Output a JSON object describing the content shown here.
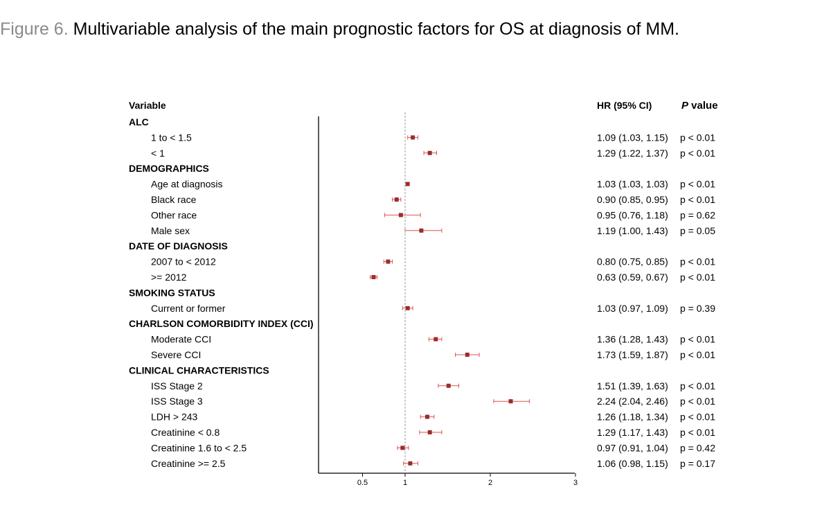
{
  "figure_label": "Figure 6.",
  "caption": "Multivariable analysis of the main prognostic factors for OS at diagnosis of MM.",
  "chart_data": {
    "type": "forest",
    "column_headers": {
      "variable": "Variable",
      "hr": "HR (95% CI)",
      "p_bold": "P",
      "p_rest": " value"
    },
    "xticks": [
      0.5,
      1,
      2,
      3
    ],
    "xtick_labels": [
      "0.5",
      "1",
      "2",
      "3"
    ],
    "xlim": [
      0.5,
      3
    ],
    "reference_line": 1,
    "rows": [
      {
        "type": "header",
        "label": "ALC"
      },
      {
        "type": "item",
        "label": "1 to < 1.5",
        "hr": 1.09,
        "lo": 1.03,
        "hi": 1.15,
        "hr_text": "1.09 (1.03, 1.15)",
        "p": "p < 0.01"
      },
      {
        "type": "item",
        "label": "< 1",
        "hr": 1.29,
        "lo": 1.22,
        "hi": 1.37,
        "hr_text": "1.29 (1.22, 1.37)",
        "p": "p < 0.01"
      },
      {
        "type": "header",
        "label": "DEMOGRAPHICS"
      },
      {
        "type": "item",
        "label": "Age at diagnosis",
        "hr": 1.03,
        "lo": 1.03,
        "hi": 1.03,
        "hr_text": "1.03 (1.03, 1.03)",
        "p": "p < 0.01"
      },
      {
        "type": "item",
        "label": "Black race",
        "hr": 0.9,
        "lo": 0.85,
        "hi": 0.95,
        "hr_text": "0.90 (0.85, 0.95)",
        "p": "p < 0.01"
      },
      {
        "type": "item",
        "label": "Other race",
        "hr": 0.95,
        "lo": 0.76,
        "hi": 1.18,
        "hr_text": "0.95 (0.76, 1.18)",
        "p": "p = 0.62"
      },
      {
        "type": "item",
        "label": "Male sex",
        "hr": 1.19,
        "lo": 1.0,
        "hi": 1.43,
        "hr_text": "1.19 (1.00, 1.43)",
        "p": "p = 0.05"
      },
      {
        "type": "header",
        "label": "DATE OF DIAGNOSIS"
      },
      {
        "type": "item",
        "label": "2007 to < 2012",
        "hr": 0.8,
        "lo": 0.75,
        "hi": 0.85,
        "hr_text": "0.80 (0.75, 0.85)",
        "p": "p < 0.01"
      },
      {
        "type": "item",
        "label": ">= 2012",
        "hr": 0.63,
        "lo": 0.59,
        "hi": 0.67,
        "hr_text": "0.63 (0.59, 0.67)",
        "p": "p < 0.01"
      },
      {
        "type": "header",
        "label": "SMOKING STATUS"
      },
      {
        "type": "item",
        "label": "Current or former",
        "hr": 1.03,
        "lo": 0.97,
        "hi": 1.09,
        "hr_text": "1.03 (0.97, 1.09)",
        "p": "p = 0.39"
      },
      {
        "type": "header",
        "label": "CHARLSON COMORBIDITY INDEX (CCI)"
      },
      {
        "type": "item",
        "label": "Moderate CCI",
        "hr": 1.36,
        "lo": 1.28,
        "hi": 1.43,
        "hr_text": "1.36 (1.28, 1.43)",
        "p": "p < 0.01"
      },
      {
        "type": "item",
        "label": "Severe CCI",
        "hr": 1.73,
        "lo": 1.59,
        "hi": 1.87,
        "hr_text": "1.73 (1.59, 1.87)",
        "p": "p < 0.01"
      },
      {
        "type": "header",
        "label": "CLINICAL CHARACTERISTICS"
      },
      {
        "type": "item",
        "label": "ISS Stage 2",
        "hr": 1.51,
        "lo": 1.39,
        "hi": 1.63,
        "hr_text": "1.51 (1.39, 1.63)",
        "p": "p < 0.01"
      },
      {
        "type": "item",
        "label": "ISS Stage 3",
        "hr": 2.24,
        "lo": 2.04,
        "hi": 2.46,
        "hr_text": "2.24 (2.04, 2.46)",
        "p": "p < 0.01"
      },
      {
        "type": "item",
        "label": "LDH > 243",
        "hr": 1.26,
        "lo": 1.18,
        "hi": 1.34,
        "hr_text": "1.26 (1.18, 1.34)",
        "p": "p < 0.01"
      },
      {
        "type": "item",
        "label": "Creatinine < 0.8",
        "hr": 1.29,
        "lo": 1.17,
        "hi": 1.43,
        "hr_text": "1.29 (1.17, 1.43)",
        "p": "p < 0.01"
      },
      {
        "type": "item",
        "label": "Creatinine 1.6 to < 2.5",
        "hr": 0.97,
        "lo": 0.91,
        "hi": 1.04,
        "hr_text": "0.97 (0.91, 1.04)",
        "p": "p = 0.42"
      },
      {
        "type": "item",
        "label": "Creatinine >= 2.5",
        "hr": 1.06,
        "lo": 0.98,
        "hi": 1.15,
        "hr_text": "1.06 (0.98, 1.15)",
        "p": "p = 0.17"
      }
    ],
    "colors": {
      "marker": "#9b2d2d",
      "ci": "#d9534f",
      "axis": "#000000",
      "reference": "#999999"
    }
  }
}
